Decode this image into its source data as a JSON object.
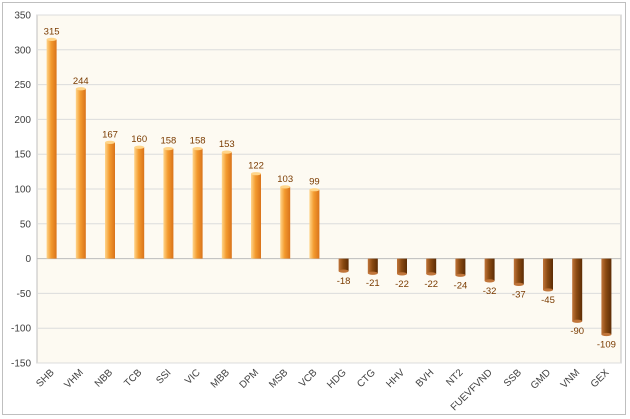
{
  "chart_data": {
    "type": "bar",
    "title": "",
    "xlabel": "",
    "ylabel": "",
    "ylim": [
      -150,
      350
    ],
    "yticks": [
      -150,
      -100,
      -50,
      0,
      50,
      100,
      150,
      200,
      250,
      300,
      350
    ],
    "grid": true,
    "legend": "none",
    "categories": [
      "SHB",
      "VHM",
      "NBB",
      "TCB",
      "SSI",
      "VIC",
      "MBB",
      "DPM",
      "MSB",
      "VCB",
      "HDG",
      "CTG",
      "HHV",
      "BVH",
      "NT2",
      "FUEVFVND",
      "SSB",
      "GMD",
      "VNM",
      "GEX"
    ],
    "values": [
      315,
      244,
      167,
      160,
      158,
      158,
      153,
      122,
      103,
      99,
      -18,
      -21,
      -22,
      -22,
      -24,
      -32,
      -37,
      -45,
      -90,
      -109
    ],
    "colors": {
      "positive_light": "#ffd58a",
      "positive_mid": "#f39a2e",
      "positive_dark": "#d9731a",
      "negative_light": "#c0753a",
      "negative_mid": "#8a4a12",
      "negative_dark": "#5c2c05",
      "plot_background": "#fdfaf2",
      "grid": "#dcdcdc"
    }
  }
}
